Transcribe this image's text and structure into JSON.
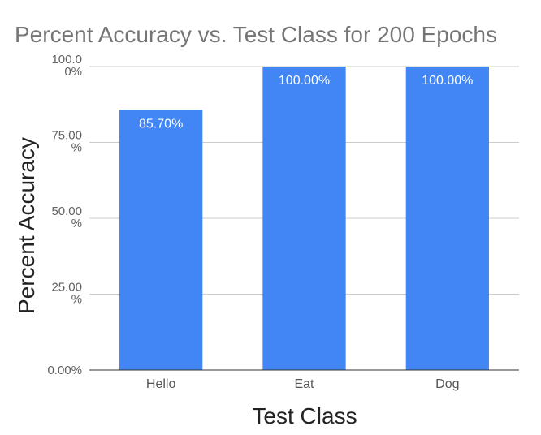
{
  "chart_data": {
    "type": "bar",
    "title": "Percent Accuracy vs. Test Class for 200 Epochs",
    "xlabel": "Test Class",
    "ylabel": "Percent Accuracy",
    "categories": [
      "Hello",
      "Eat",
      "Dog"
    ],
    "values": [
      85.7,
      100,
      100
    ],
    "data_labels": [
      "85.70%",
      "100.00%",
      "100.00%"
    ],
    "ylim": [
      0,
      100
    ],
    "yticks": [
      {
        "value": 0,
        "label": [
          "0.00%"
        ]
      },
      {
        "value": 25,
        "label": [
          "25.00",
          "%"
        ]
      },
      {
        "value": 50,
        "label": [
          "50.00",
          "%"
        ]
      },
      {
        "value": 75,
        "label": [
          "75.00",
          "%"
        ]
      },
      {
        "value": 100,
        "label": [
          "100.0",
          "0%"
        ]
      }
    ],
    "grid": true,
    "bar_color": "#4285f4"
  }
}
